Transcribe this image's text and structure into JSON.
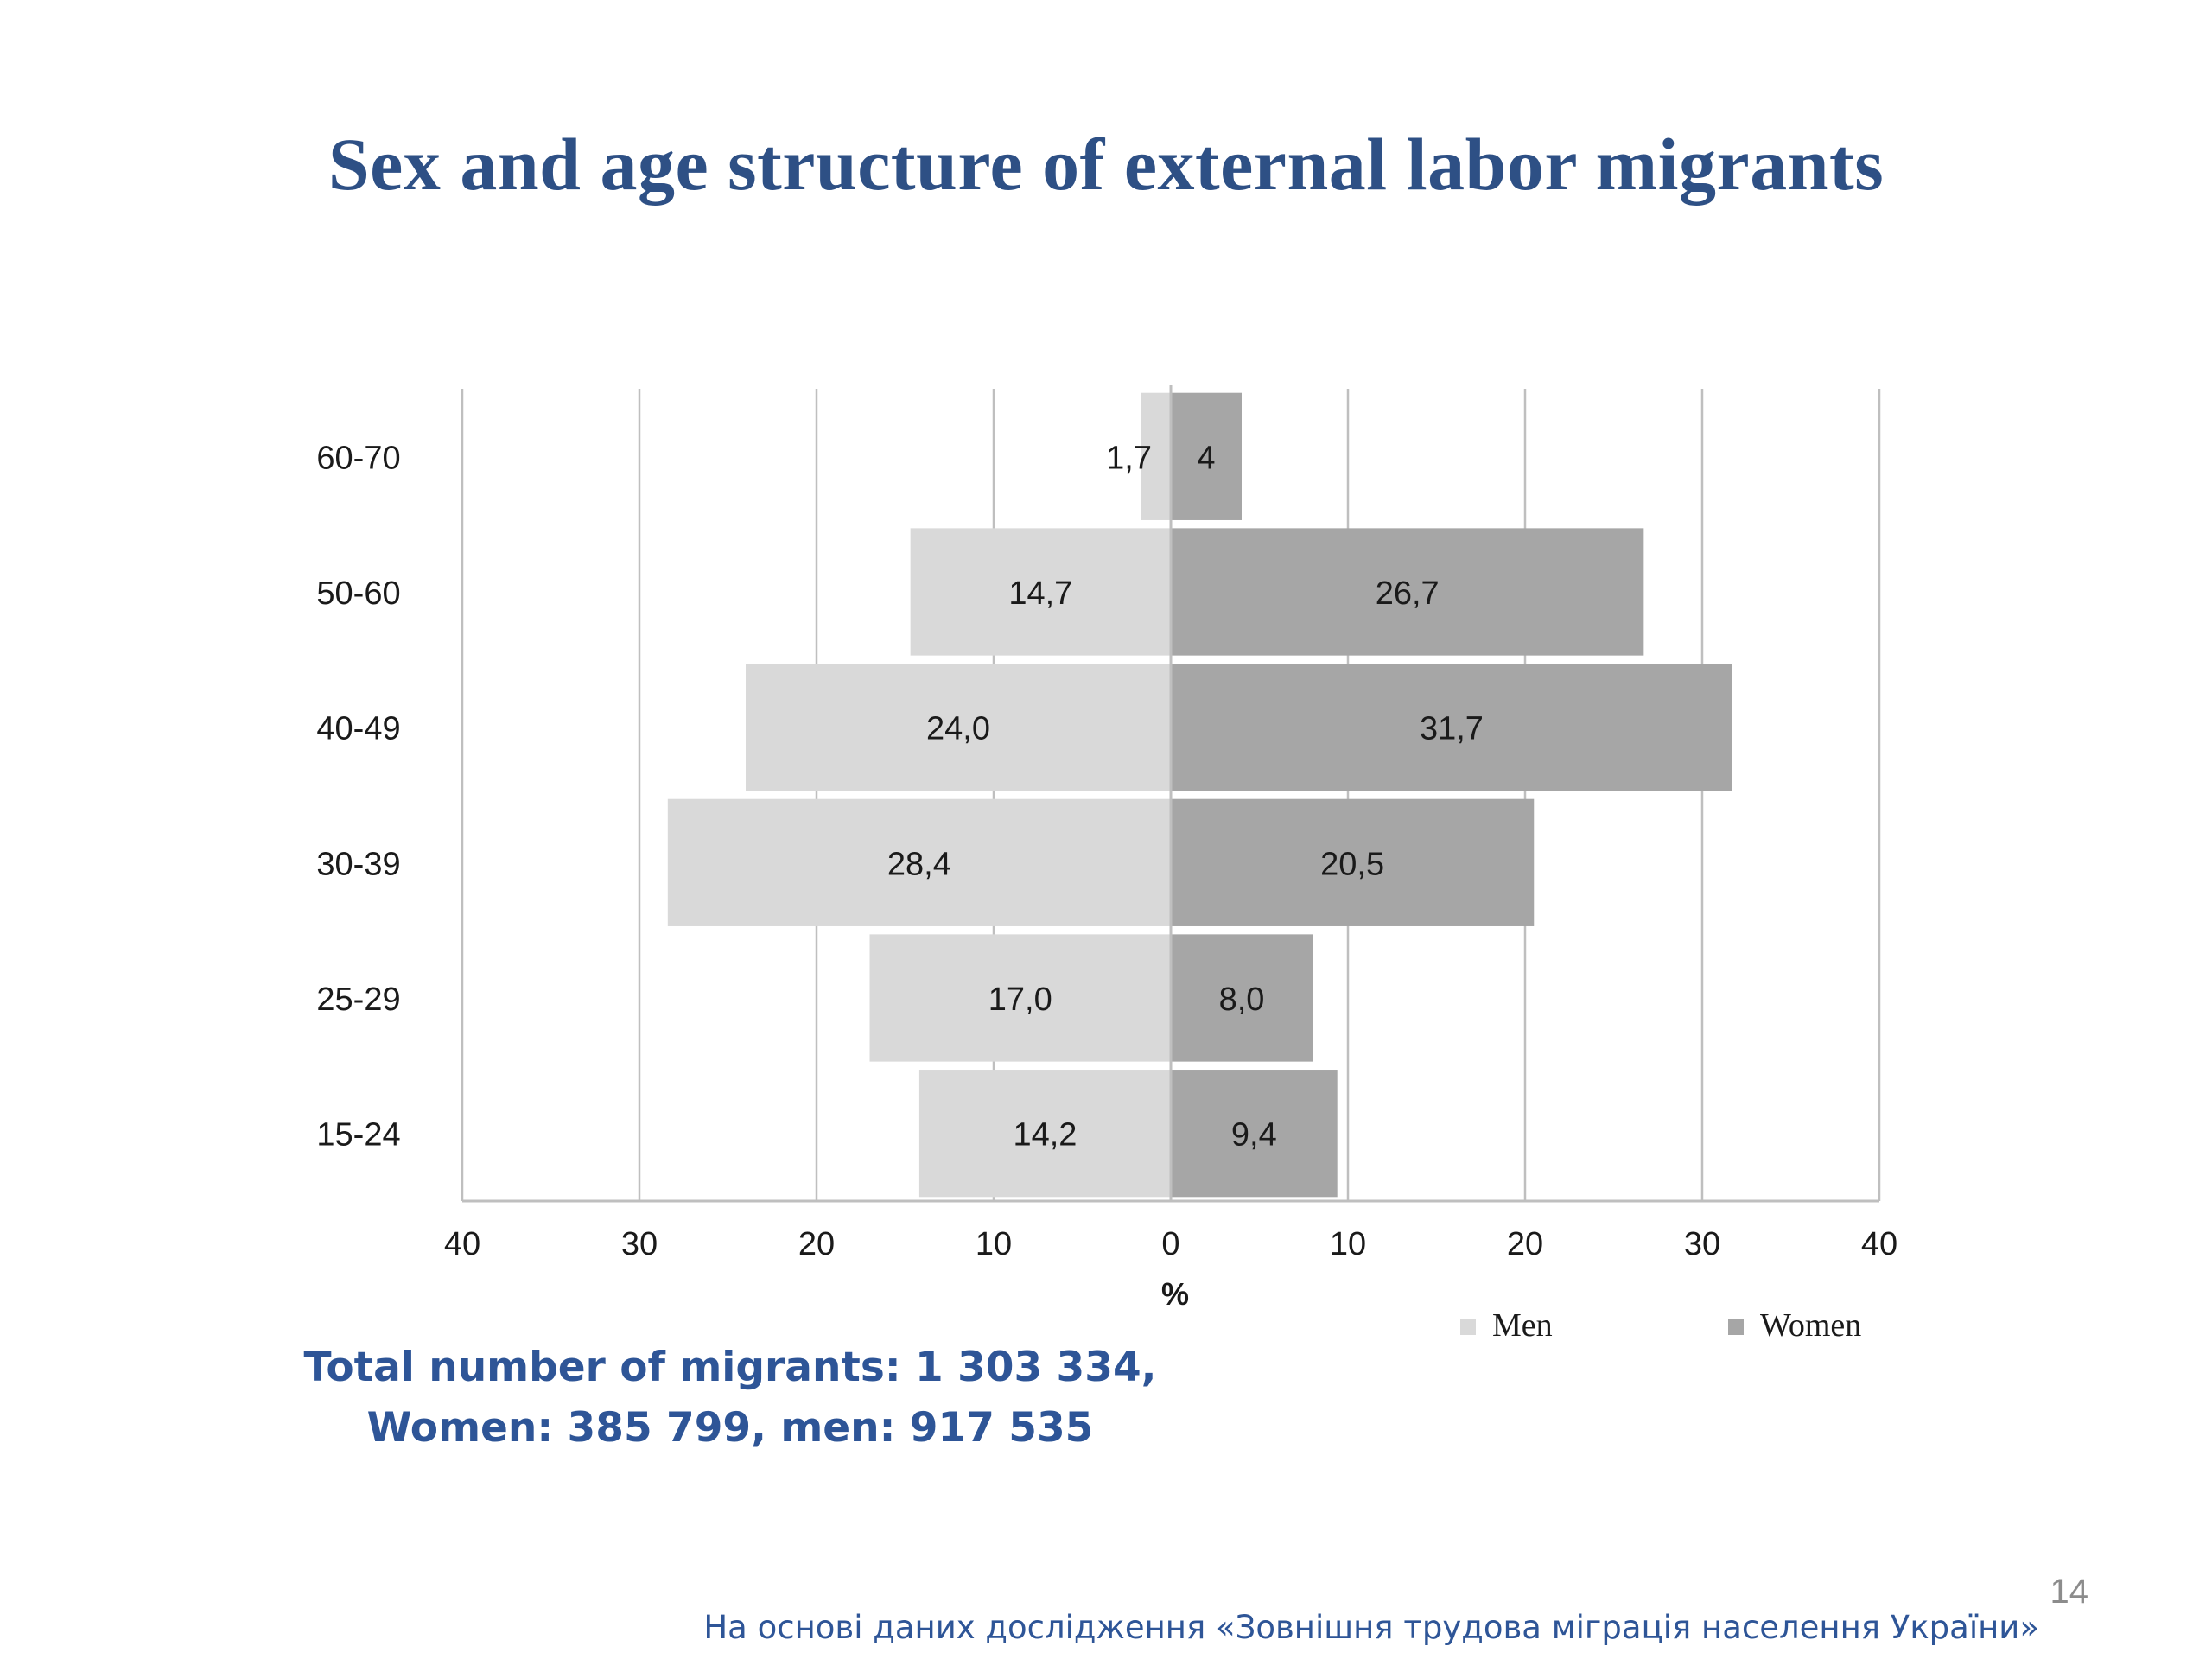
{
  "slide": {
    "title": "Sex and age structure of external labor migrants",
    "total_line1": "Total number of migrants: 1 303 334,",
    "total_line2": "Women: 385 799, men: 917 535",
    "page_number": "14",
    "source_note": "На основі даних дослідження «Зовнішня трудова міграція населення України»"
  },
  "colors": {
    "men": "#d9d9d9",
    "women": "#a6a6a6",
    "gridline": "#bfbfbf",
    "axis": "#bfbfbf",
    "text": "#1a1a1a",
    "title": "#2e5085",
    "note": "#2e5597"
  },
  "chart_data": {
    "type": "bar",
    "orientation": "horizontal-diverging",
    "categories": [
      "60-70",
      "50-60",
      "40-49",
      "30-39",
      "25-29",
      "15-24"
    ],
    "series": [
      {
        "name": "Men",
        "values": [
          1.7,
          14.7,
          24.0,
          28.4,
          17.0,
          14.2
        ],
        "labels": [
          "1,7",
          "14,7",
          "24,0",
          "28,4",
          "17,0",
          "14,2"
        ]
      },
      {
        "name": "Women",
        "values": [
          4,
          26.7,
          31.7,
          20.5,
          8.0,
          9.4
        ],
        "labels": [
          "4",
          "26,7",
          "31,7",
          "20,5",
          "8,0",
          "9,4"
        ]
      }
    ],
    "xlim": [
      -40,
      40
    ],
    "xticks": [
      -40,
      -30,
      -20,
      -10,
      0,
      10,
      20,
      30,
      40
    ],
    "xtick_labels": [
      "40",
      "30",
      "20",
      "10",
      "0",
      "10",
      "20",
      "30",
      "40"
    ],
    "xlabel": "%",
    "ylabel": "",
    "grid": "vertical",
    "legend_position": "bottom-right"
  }
}
